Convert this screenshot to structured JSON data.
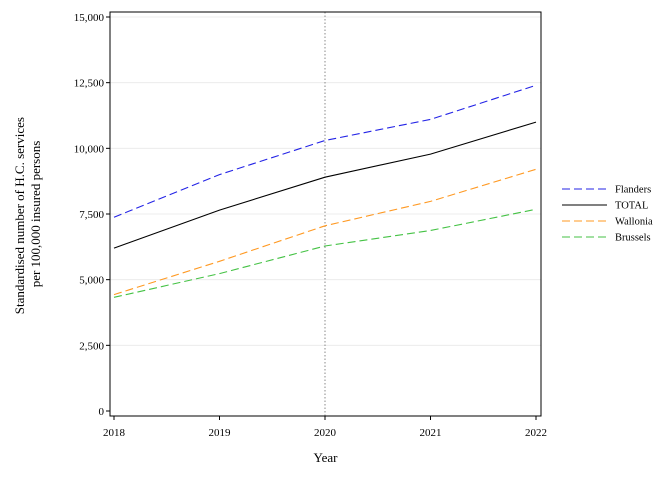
{
  "chart_data": {
    "type": "line",
    "title": "",
    "xlabel": "Year",
    "ylabel_lines": [
      "Standardised number of H.C. services",
      "per 100,000 insured persons"
    ],
    "x": [
      2018,
      2019,
      2020,
      2021,
      2022
    ],
    "x_tick_labels": [
      "2018",
      "2019",
      "2020",
      "2021",
      "2022"
    ],
    "xlim": [
      2018,
      2022
    ],
    "ylim": [
      0,
      15000
    ],
    "y_ticks": [
      0,
      2500,
      5000,
      7500,
      10000,
      12500,
      15000
    ],
    "y_tick_labels": [
      "0",
      "2,500",
      "5,000",
      "7,500",
      "10,000",
      "12,500",
      "15,000"
    ],
    "grid": true,
    "reference_line_x": 2020,
    "legend_position": "right",
    "series": [
      {
        "name": "Flanders",
        "values": [
          7380,
          9000,
          10300,
          11100,
          12400
        ],
        "color": "#2323e6",
        "dash": "dashed"
      },
      {
        "name": "TOTAL",
        "values": [
          6200,
          7650,
          8900,
          9780,
          11000
        ],
        "color": "#000000",
        "dash": "solid"
      },
      {
        "name": "Wallonia",
        "values": [
          4430,
          5700,
          7050,
          7980,
          9200
        ],
        "color": "#ff9922",
        "dash": "dashed"
      },
      {
        "name": "Brussels",
        "values": [
          4330,
          5230,
          6280,
          6870,
          7680
        ],
        "color": "#44c244",
        "dash": "dashed"
      }
    ]
  }
}
